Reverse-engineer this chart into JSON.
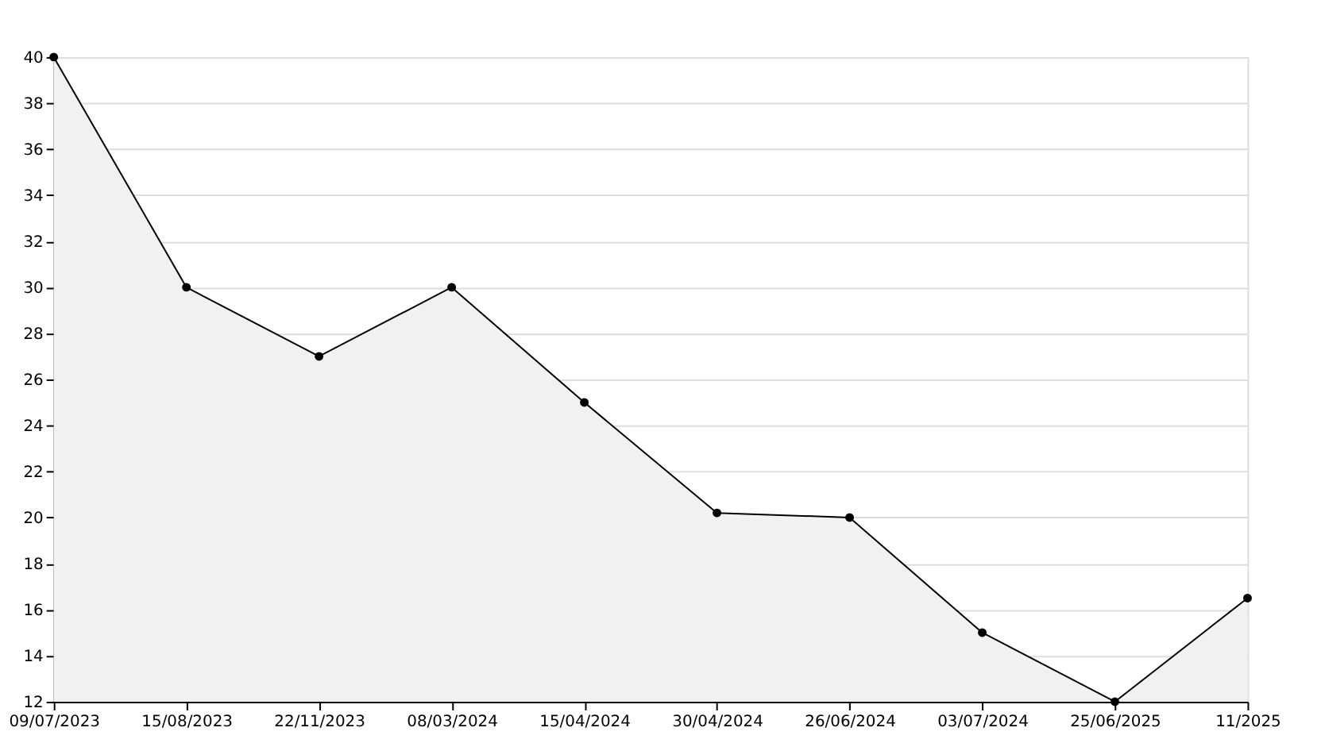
{
  "chart_data": {
    "type": "area",
    "categories": [
      "09/07/2023",
      "15/08/2023",
      "22/11/2023",
      "08/03/2024",
      "15/04/2024",
      "30/04/2024",
      "26/06/2024",
      "03/07/2024",
      "25/06/2025",
      "11/2025"
    ],
    "series": [
      {
        "color": "#000000",
        "values": [
          40,
          30,
          27,
          30,
          25,
          20.2,
          20,
          15,
          12,
          16.5
        ]
      }
    ],
    "ylim": [
      12,
      40
    ],
    "yticks": [
      12,
      14,
      16,
      18,
      20,
      22,
      24,
      26,
      28,
      30,
      32,
      34,
      36,
      38,
      40
    ],
    "grid": "y",
    "marker": "circle",
    "line_style": "solid"
  }
}
